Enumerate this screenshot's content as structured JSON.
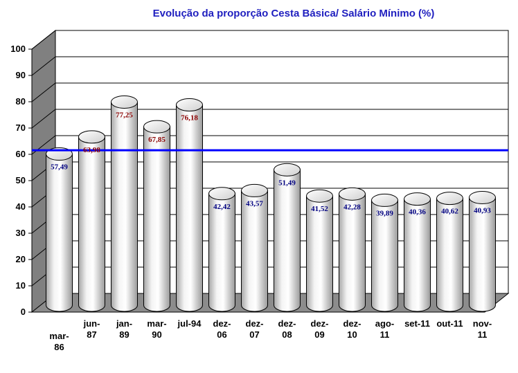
{
  "chart_data": {
    "type": "bar",
    "title": "Evolução da proporção Cesta Básica/ Salário Mínimo (%)",
    "categories": [
      [
        "mar-",
        "86"
      ],
      [
        "jun-",
        "87"
      ],
      [
        "jan-",
        "89"
      ],
      [
        "mar-",
        "90"
      ],
      [
        "jul-94"
      ],
      [
        "dez-",
        "06"
      ],
      [
        "dez-",
        "07"
      ],
      [
        "dez-",
        "08"
      ],
      [
        "dez-",
        "09"
      ],
      [
        "dez-",
        "10"
      ],
      [
        "ago-",
        "11"
      ],
      [
        "set-11"
      ],
      [
        "out-11"
      ],
      [
        "nov-",
        "11"
      ]
    ],
    "values": [
      57.49,
      63.98,
      77.25,
      67.85,
      76.18,
      42.42,
      43.57,
      51.49,
      41.52,
      42.28,
      39.89,
      40.36,
      40.62,
      40.93
    ],
    "labels": [
      "57,49",
      "63,98",
      "77,25",
      "67,85",
      "76,18",
      "42,42",
      "43,57",
      "51,49",
      "41,52",
      "42,28",
      "39,89",
      "40,36",
      "40,62",
      "40,93"
    ],
    "yticks": [
      "0",
      "10",
      "20",
      "30",
      "40",
      "50",
      "60",
      "70",
      "80",
      "90",
      "100"
    ],
    "ylim": [
      0,
      100
    ],
    "grid": true,
    "reference_line": 58,
    "bar_style": "3d-cylinder",
    "colors": {
      "title": "#1f1fbf",
      "reference_line": "#0000ff",
      "label_high": "#8b0000",
      "label_low": "#000080",
      "wall": "#ffffff",
      "side_wall": "#808080",
      "floor": "#8c8c8c"
    }
  }
}
